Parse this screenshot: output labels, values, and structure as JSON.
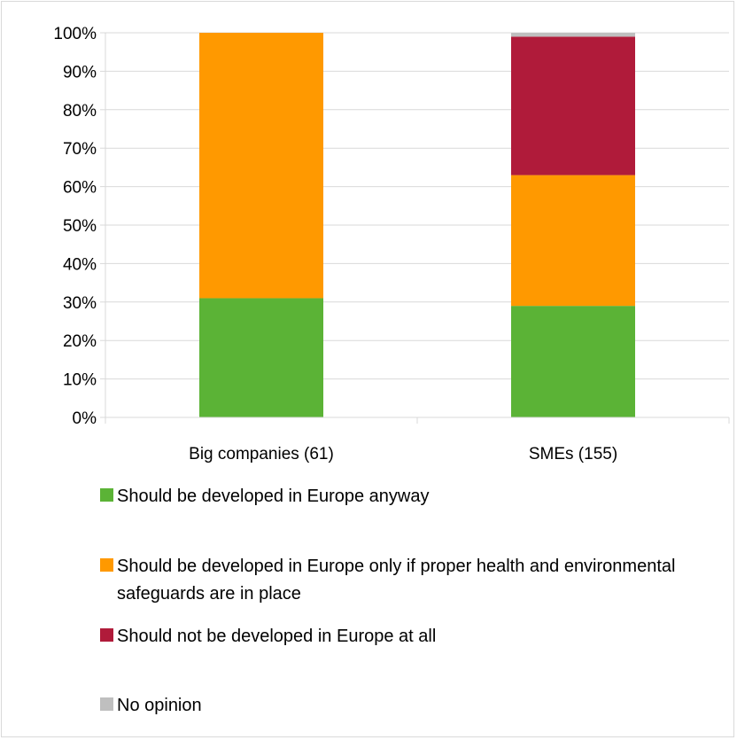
{
  "chart_data": {
    "type": "bar",
    "stacked": true,
    "normalized_percent": true,
    "categories": [
      "Big companies (61)",
      "SMEs (155)"
    ],
    "series": [
      {
        "name": "Should be developed in Europe anyway",
        "color": "#5bb336",
        "values": [
          31,
          29
        ]
      },
      {
        "name": "Should be developed in Europe only if proper health and environmental safeguards are in place",
        "color": "#ff9900",
        "values": [
          69,
          34
        ]
      },
      {
        "name": "Should not be developed in Europe at all",
        "color": "#b01b3a",
        "values": [
          0,
          36
        ]
      },
      {
        "name": "No opinion",
        "color": "#bfbfbf",
        "values": [
          0,
          1
        ]
      }
    ],
    "ylim": [
      0,
      100
    ],
    "yticks": [
      "0%",
      "10%",
      "20%",
      "30%",
      "40%",
      "50%",
      "60%",
      "70%",
      "80%",
      "90%",
      "100%"
    ],
    "grid": true,
    "legend_position": "bottom"
  }
}
